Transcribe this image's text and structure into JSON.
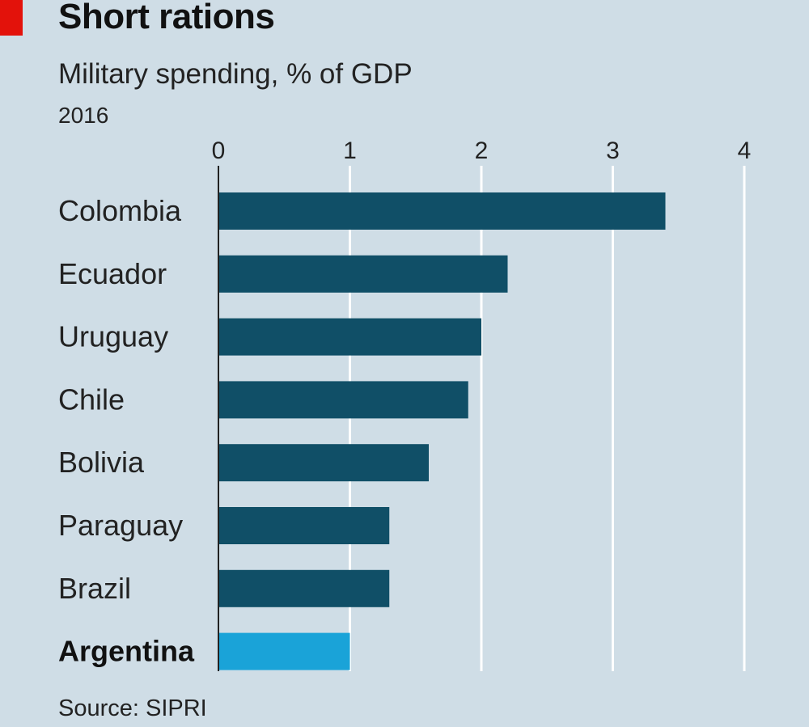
{
  "header": {
    "title": "Short rations",
    "subtitle": "Military spending, % of GDP",
    "year": "2016"
  },
  "footer": {
    "source": "Source: SIPRI"
  },
  "colors": {
    "background": "#cfdde6",
    "bar": "#104f67",
    "highlight_bar": "#1aa3d8",
    "accent_tag": "#e3120b",
    "gridline": "#ffffff"
  },
  "chart_data": {
    "type": "bar",
    "orientation": "horizontal",
    "title": "Short rations",
    "subtitle": "Military spending, % of GDP",
    "categories": [
      "Colombia",
      "Ecuador",
      "Uruguay",
      "Chile",
      "Bolivia",
      "Paraguay",
      "Brazil",
      "Argentina"
    ],
    "values": [
      3.4,
      2.2,
      2.0,
      1.9,
      1.6,
      1.3,
      1.3,
      1.0
    ],
    "highlight": "Argentina",
    "xlim": [
      0,
      4
    ],
    "xticks": [
      "0",
      "1",
      "2",
      "3",
      "4"
    ],
    "grid": "vertical",
    "source": "Source: SIPRI"
  }
}
